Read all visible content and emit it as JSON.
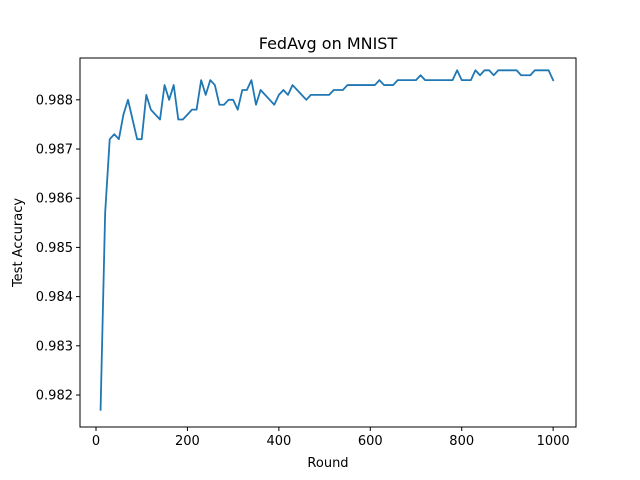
{
  "chart_data": {
    "type": "line",
    "title": "FedAvg on MNIST",
    "xlabel": "Round",
    "ylabel": "Test Accuracy",
    "xlim": [
      -35,
      1050
    ],
    "ylim": [
      0.98135,
      0.98885
    ],
    "xticks": [
      0,
      200,
      400,
      600,
      800,
      1000
    ],
    "yticks": [
      0.982,
      0.983,
      0.984,
      0.985,
      0.986,
      0.987,
      0.988
    ],
    "xtick_labels": [
      "0",
      "200",
      "400",
      "600",
      "800",
      "1000"
    ],
    "ytick_labels": [
      "0.982",
      "0.983",
      "0.984",
      "0.985",
      "0.986",
      "0.987",
      "0.988"
    ],
    "grid": false,
    "line_color": "#1f77b4",
    "series": [
      {
        "x": [
          10,
          20,
          30,
          40,
          50,
          60,
          70,
          80,
          90,
          100,
          110,
          120,
          130,
          140,
          150,
          160,
          170,
          180,
          190,
          200,
          210,
          220,
          230,
          240,
          250,
          260,
          270,
          280,
          290,
          300,
          310,
          320,
          330,
          340,
          350,
          360,
          370,
          380,
          390,
          400,
          410,
          420,
          430,
          440,
          450,
          460,
          470,
          480,
          490,
          500,
          510,
          520,
          530,
          540,
          550,
          560,
          570,
          580,
          590,
          600,
          610,
          620,
          630,
          640,
          650,
          660,
          670,
          680,
          690,
          700,
          710,
          720,
          730,
          740,
          750,
          760,
          770,
          780,
          790,
          800,
          810,
          820,
          830,
          840,
          850,
          860,
          870,
          880,
          890,
          900,
          910,
          920,
          930,
          940,
          950,
          960,
          970,
          980,
          990,
          1000
        ],
        "values": [
          0.9817,
          0.9857,
          0.9872,
          0.9873,
          0.9872,
          0.9877,
          0.988,
          0.9876,
          0.9872,
          0.9872,
          0.9881,
          0.9878,
          0.9877,
          0.9876,
          0.9883,
          0.988,
          0.9883,
          0.9876,
          0.9876,
          0.9877,
          0.9878,
          0.9878,
          0.9884,
          0.9881,
          0.9884,
          0.9883,
          0.9879,
          0.9879,
          0.988,
          0.988,
          0.9878,
          0.9882,
          0.9882,
          0.9884,
          0.9879,
          0.9882,
          0.9881,
          0.988,
          0.9879,
          0.9881,
          0.9882,
          0.9881,
          0.9883,
          0.9882,
          0.9881,
          0.988,
          0.9881,
          0.9881,
          0.9881,
          0.9881,
          0.9881,
          0.9882,
          0.9882,
          0.9882,
          0.9883,
          0.9883,
          0.9883,
          0.9883,
          0.9883,
          0.9883,
          0.9883,
          0.9884,
          0.9883,
          0.9883,
          0.9883,
          0.9884,
          0.9884,
          0.9884,
          0.9884,
          0.9884,
          0.9885,
          0.9884,
          0.9884,
          0.9884,
          0.9884,
          0.9884,
          0.9884,
          0.9884,
          0.9886,
          0.9884,
          0.9884,
          0.9884,
          0.9886,
          0.9885,
          0.9886,
          0.9886,
          0.9885,
          0.9886,
          0.9886,
          0.9886,
          0.9886,
          0.9886,
          0.9885,
          0.9885,
          0.9885,
          0.9886,
          0.9886,
          0.9886,
          0.9886,
          0.9884
        ]
      }
    ]
  }
}
